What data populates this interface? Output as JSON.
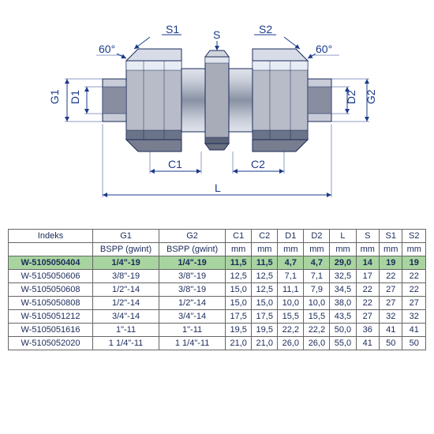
{
  "diagram": {
    "labels": {
      "S1": "S1",
      "S2": "S2",
      "S": "S",
      "angle_left": "60°",
      "angle_right": "60°",
      "G1": "G1",
      "D1": "D1",
      "G2": "G2",
      "D2": "D2",
      "C1": "C1",
      "C2": "C2",
      "L": "L"
    },
    "colors": {
      "dim_line": "#1a3a8a",
      "dim_text": "#1a3a8a",
      "body_light": "#d0d4dc",
      "body_mid": "#9ca4b4",
      "body_dark": "#5a6478",
      "body_darkest": "#2a3040",
      "outline": "#1a2a5a"
    }
  },
  "table": {
    "headers": [
      "Indeks",
      "G1",
      "G2",
      "C1",
      "C2",
      "D1",
      "D2",
      "L",
      "S",
      "S1",
      "S2"
    ],
    "sub_headers": [
      "",
      "BSPP (gwint)",
      "BSPP (gwint)",
      "mm",
      "mm",
      "mm",
      "mm",
      "mm",
      "mm",
      "mm",
      "mm"
    ],
    "highlight_index": 0,
    "highlight_color": "#a8d4a0",
    "text_color": "#1a2a5a",
    "rows": [
      [
        "W-5105050404",
        "1/4\"-19",
        "1/4\"-19",
        "11,5",
        "11,5",
        "4,7",
        "4,7",
        "29,0",
        "14",
        "19",
        "19"
      ],
      [
        "W-5105050606",
        "3/8\"-19",
        "3/8\"-19",
        "12,5",
        "12,5",
        "7,1",
        "7,1",
        "32,5",
        "17",
        "22",
        "22"
      ],
      [
        "W-5105050608",
        "1/2\"-14",
        "3/8\"-19",
        "15,0",
        "12,5",
        "11,1",
        "7,9",
        "34,5",
        "22",
        "27",
        "22"
      ],
      [
        "W-5105050808",
        "1/2\"-14",
        "1/2\"-14",
        "15,0",
        "15,0",
        "10,0",
        "10,0",
        "38,0",
        "22",
        "27",
        "27"
      ],
      [
        "W-5105051212",
        "3/4\"-14",
        "3/4\"-14",
        "17,5",
        "17,5",
        "15,5",
        "15,5",
        "43,5",
        "27",
        "32",
        "32"
      ],
      [
        "W-5105051616",
        "1\"-11",
        "1\"-11",
        "19,5",
        "19,5",
        "22,2",
        "22,2",
        "50,0",
        "36",
        "41",
        "41"
      ],
      [
        "W-5105052020",
        "1 1/4\"-11",
        "1 1/4\"-11",
        "21,0",
        "21,0",
        "26,0",
        "26,0",
        "55,0",
        "41",
        "50",
        "50"
      ]
    ]
  }
}
